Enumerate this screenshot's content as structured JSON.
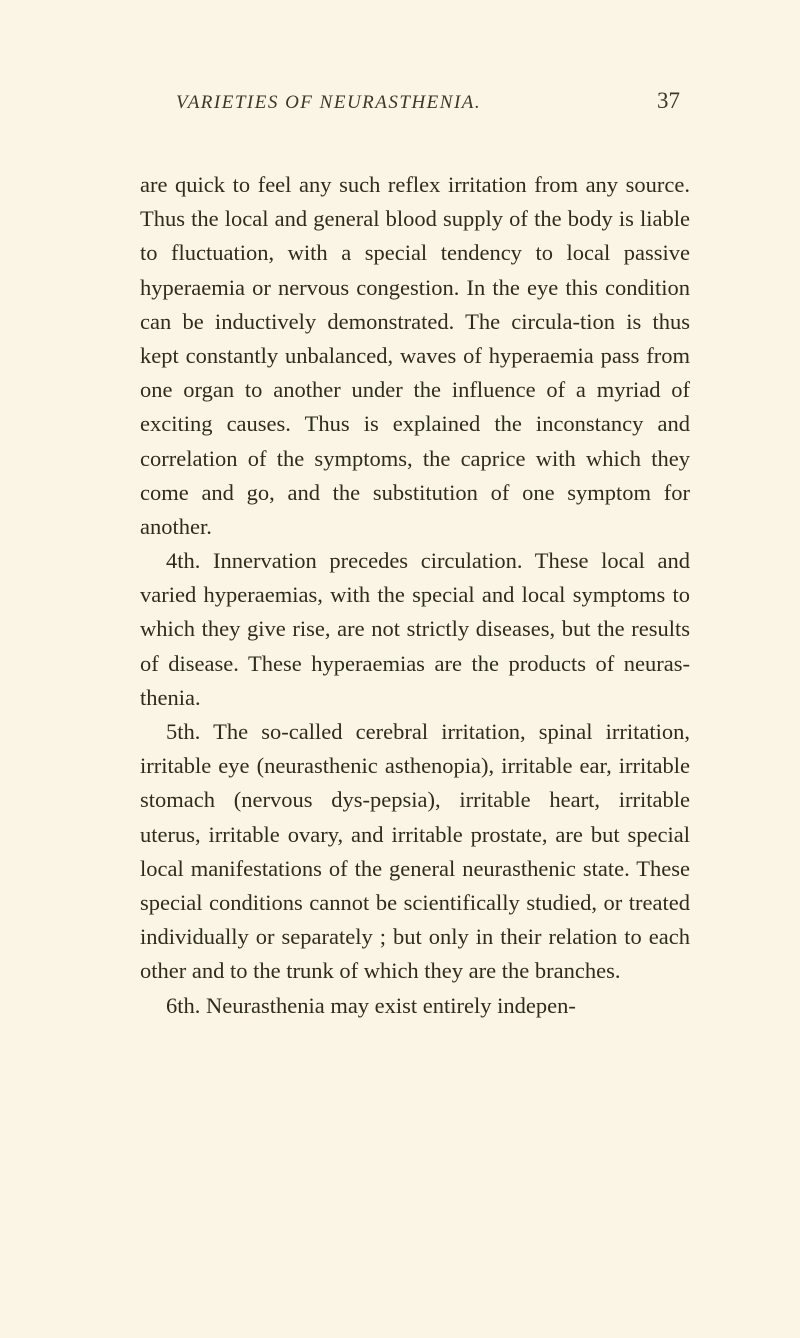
{
  "header": {
    "running_title": "VARIETIES OF NEURASTHENIA.",
    "page_number": "37"
  },
  "paragraphs": {
    "p1": "are quick to feel any such reflex irritation from any source. Thus the local and general blood supply of the body is liable to fluctuation, with a special tendency to local passive hyperaemia or nervous congestion. In the eye this condition can be inductively demonstrated. The circula-tion is thus kept constantly unbalanced, waves of hyperaemia pass from one organ to another under the influence of a myriad of exciting causes. Thus is explained the inconstancy and correlation of the symptoms, the caprice with which they come and go, and the substitution of one symptom for another.",
    "p2": "4th. Innervation precedes circulation. These local and varied hyperaemias, with the special and local symptoms to which they give rise, are not strictly diseases, but the results of disease. These hyperaemias are the products of neuras-thenia.",
    "p3": "5th. The so-called cerebral irritation, spinal irritation, irritable eye (neurasthenic asthenopia), irritable ear, irritable stomach (nervous dys-pepsia), irritable heart, irritable uterus, irritable ovary, and irritable prostate, are but special local manifestations of the general neurasthenic state. These special conditions cannot be scientifically studied, or treated individually or separately ; but only in their relation to each other and to the trunk of which they are the branches.",
    "p4": "6th. Neurasthenia may exist entirely indepen-"
  },
  "colors": {
    "background": "#faf5e4",
    "text": "#2e2c1c",
    "header_text": "#3a3826"
  },
  "typography": {
    "body_fontsize": 22.5,
    "body_lineheight": 1.52,
    "header_fontsize": 19,
    "pagenum_fontsize": 23
  }
}
